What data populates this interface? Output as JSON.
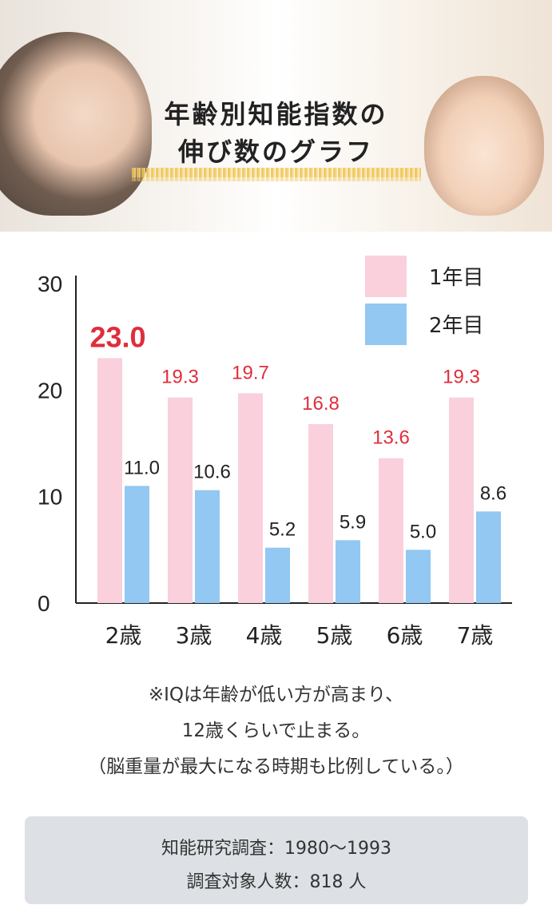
{
  "header": {
    "title_line1": "年齢別知能指数の",
    "title_line2": "伸び数のグラフ"
  },
  "chart_data": {
    "type": "bar",
    "categories": [
      "2歳",
      "3歳",
      "4歳",
      "5歳",
      "6歳",
      "7歳"
    ],
    "series": [
      {
        "name": "1年目",
        "values": [
          23.0,
          19.3,
          19.7,
          16.8,
          13.6,
          19.3
        ],
        "color": "#f9d0dc"
      },
      {
        "name": "2年目",
        "values": [
          11.0,
          10.6,
          5.2,
          5.9,
          5.0,
          8.6
        ],
        "color": "#92c8f2"
      }
    ],
    "data_labels_series1": [
      "23.0",
      "19.3",
      "19.7",
      "16.8",
      "13.6",
      "19.3"
    ],
    "data_labels_series2": [
      "11.0",
      "10.6",
      "5.2",
      "5.9",
      "5.0",
      "8.6"
    ],
    "yticks": [
      "0",
      "10",
      "20",
      "30"
    ],
    "ylim": [
      0,
      30
    ],
    "label_color_series1": "#e02d3c",
    "legend_position": "top-right",
    "grid": false
  },
  "notes": {
    "line1": "※IQは年齢が低い方が高まり、",
    "line2": "12歳くらいで止まる。",
    "line3": "（脳重量が最大になる時期も比例している。）"
  },
  "info": {
    "line1": "知能研究調査：1980〜1993",
    "line2": "調査対象人数：818 人"
  }
}
